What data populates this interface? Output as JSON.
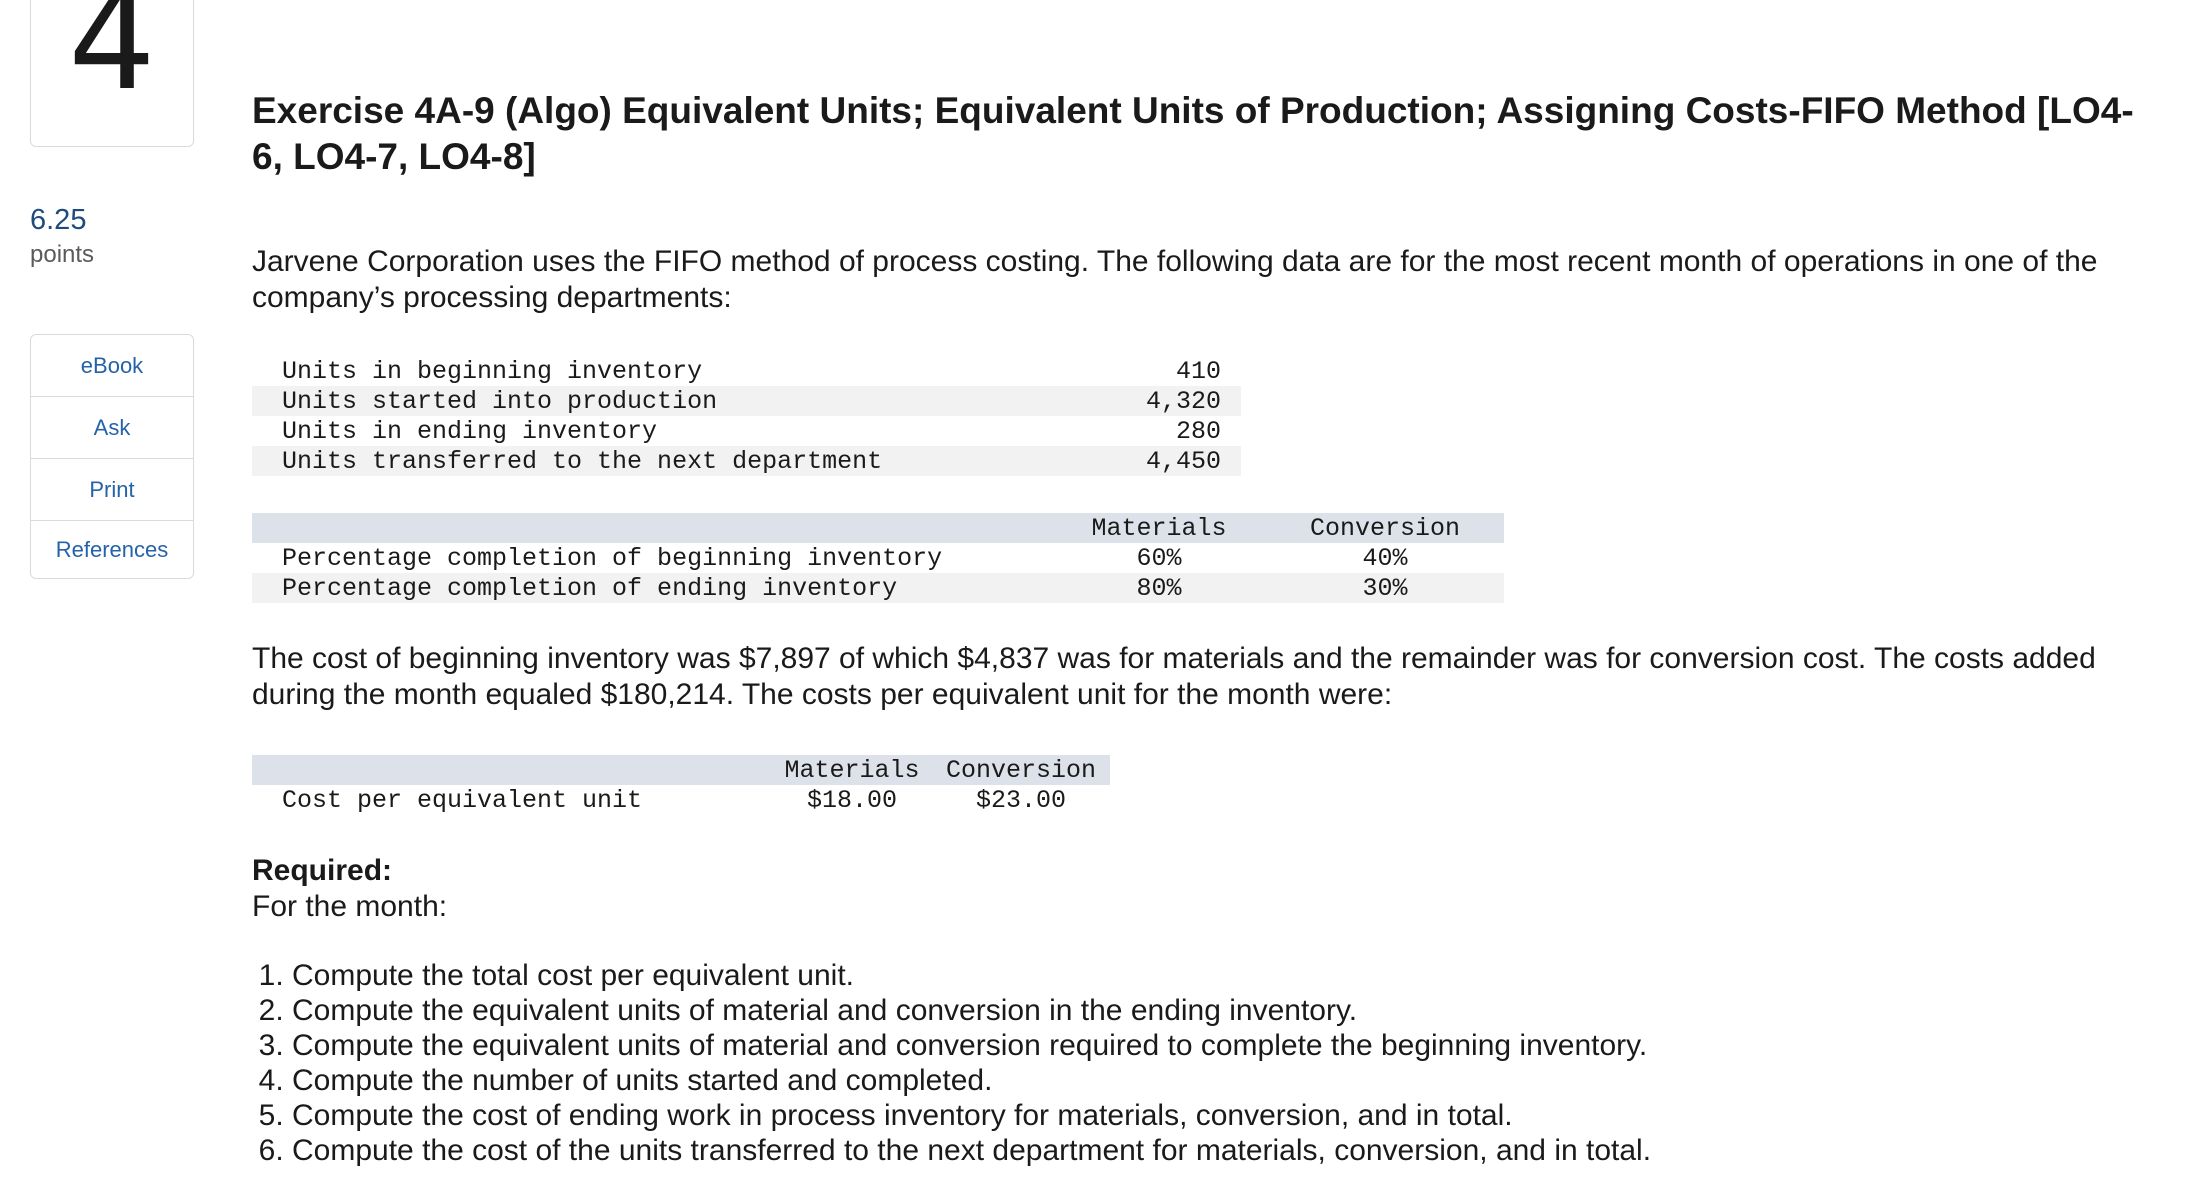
{
  "question": {
    "number": "4",
    "points_value": "6.25",
    "points_label": "points"
  },
  "side_menu": {
    "items": [
      {
        "label": "eBook"
      },
      {
        "label": "Ask"
      },
      {
        "label": "Print"
      },
      {
        "label": "References"
      }
    ]
  },
  "exercise": {
    "title": "Exercise 4A-9 (Algo) Equivalent Units; Equivalent Units of Production; Assigning Costs-FIFO Method [LO4-6, LO4-7, LO4-8]",
    "intro": "Jarvene Corporation uses the FIFO method of process costing. The following data are for the most recent month of operations in one of the company’s processing departments:",
    "units_table": [
      {
        "label": "Units in beginning inventory",
        "value": "410"
      },
      {
        "label": "Units started into production",
        "value": "4,320"
      },
      {
        "label": "Units in ending inventory",
        "value": "280"
      },
      {
        "label": "Units transferred to the next department",
        "value": "4,450"
      }
    ],
    "completion_table": {
      "headers": [
        "Materials",
        "Conversion"
      ],
      "rows": [
        {
          "label": "Percentage completion of beginning inventory",
          "materials": "60%",
          "conversion": "40%"
        },
        {
          "label": "Percentage completion of ending inventory",
          "materials": "80%",
          "conversion": "30%"
        }
      ]
    },
    "cost_paragraph": "The cost of beginning inventory was $7,897 of which $4,837 was for materials and the remainder was for conversion cost. The costs added during the month equaled $180,214. The costs per equivalent unit for the month were:",
    "cost_table": {
      "headers": [
        "Materials",
        "Conversion"
      ],
      "rows": [
        {
          "label": "Cost per equivalent unit",
          "materials": "$18.00",
          "conversion": "$23.00"
        }
      ]
    },
    "required_label": "Required:",
    "for_month": "For the month:",
    "requirements": [
      "Compute the total cost per equivalent unit.",
      "Compute the equivalent units of material and conversion in the ending inventory.",
      "Compute the equivalent units of material and conversion required to complete the beginning inventory.",
      "Compute the number of units started and completed.",
      "Compute the cost of ending work in process inventory for materials, conversion, and in total.",
      "Compute the cost of the units transferred to the next department for materials, conversion, and in total."
    ]
  }
}
